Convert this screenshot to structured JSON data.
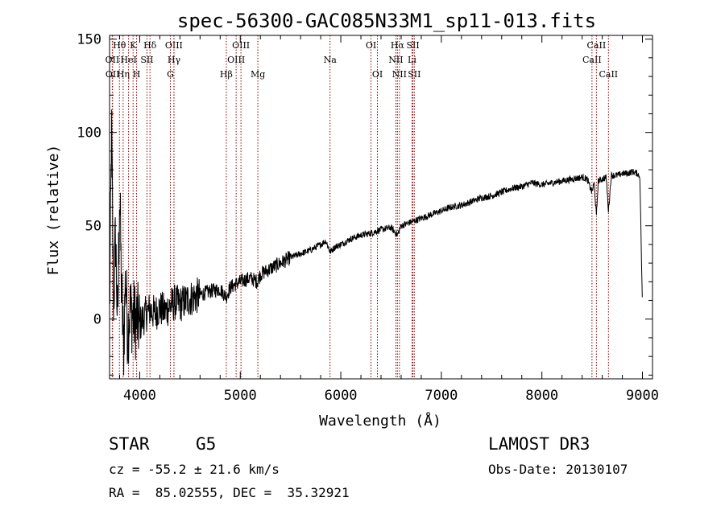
{
  "chart_data": {
    "type": "line",
    "title": "spec-56300-GAC085N33M1_sp11-013.fits",
    "xlabel": "Wavelength (Å)",
    "ylabel": "Flux (relative)",
    "xlim": [
      3700,
      9100
    ],
    "ylim": [
      -32,
      152
    ],
    "x_ticks": [
      4000,
      5000,
      6000,
      7000,
      8000,
      9000
    ],
    "x_tick_labels": [
      "4000",
      "5000",
      "6000",
      "7000",
      "8000",
      "9000"
    ],
    "y_ticks": [
      0,
      50,
      100,
      150
    ],
    "y_tick_labels": [
      "0",
      "50",
      "100",
      "150"
    ],
    "grid": false,
    "line_color": "#8b0000",
    "series": [
      {
        "name": "flux",
        "x": [
          3700,
          3720,
          3740,
          3760,
          3780,
          3800,
          3820,
          3840,
          3860,
          3880,
          3900,
          3950,
          4000,
          4050,
          4100,
          4150,
          4200,
          4250,
          4300,
          4350,
          4400,
          4500,
          4600,
          4700,
          4800,
          4860,
          4900,
          5000,
          5100,
          5170,
          5200,
          5300,
          5400,
          5500,
          5600,
          5700,
          5800,
          5850,
          5893,
          5950,
          6000,
          6100,
          6200,
          6300,
          6400,
          6500,
          6563,
          6600,
          6700,
          6800,
          6900,
          7000,
          7100,
          7200,
          7300,
          7400,
          7500,
          7600,
          7700,
          7800,
          7900,
          8000,
          8100,
          8200,
          8300,
          8400,
          8450,
          8498,
          8520,
          8542,
          8560,
          8600,
          8640,
          8662,
          8690,
          8750,
          8800,
          8850,
          8900,
          8950,
          8975,
          9000
        ],
        "y": [
          2,
          100,
          8,
          45,
          -5,
          70,
          12,
          -15,
          25,
          -8,
          5,
          0,
          -3,
          2,
          5,
          3,
          6,
          4,
          7,
          9,
          8,
          11,
          13,
          15,
          16,
          12,
          17,
          20,
          22,
          20,
          24,
          27,
          30,
          33,
          35,
          37,
          40,
          42,
          36,
          39,
          40,
          43,
          45,
          46,
          48,
          49,
          45,
          50,
          52,
          54,
          56,
          58,
          60,
          61,
          63,
          65,
          66,
          68,
          70,
          71,
          73,
          72,
          73,
          74,
          75,
          76,
          75,
          68,
          73,
          55,
          74,
          75,
          76,
          58,
          77,
          77,
          78,
          78,
          79,
          78,
          76,
          5
        ]
      }
    ],
    "lines": [
      {
        "label": "OII",
        "x": 3727,
        "row": 2
      },
      {
        "label": "OII",
        "x": 3730,
        "row": 3
      },
      {
        "label": "Hθ",
        "x": 3798,
        "row": 1
      },
      {
        "label": "Hη",
        "x": 3835,
        "row": 3
      },
      {
        "label": "HeI",
        "x": 3889,
        "row": 2
      },
      {
        "label": "K",
        "x": 3934,
        "row": 1
      },
      {
        "label": "H",
        "x": 3969,
        "row": 3
      },
      {
        "label": "SII",
        "x": 4072,
        "row": 2
      },
      {
        "label": "Hδ",
        "x": 4102,
        "row": 1
      },
      {
        "label": "G",
        "x": 4305,
        "row": 3
      },
      {
        "label": "OIII",
        "x": 4340,
        "row": 1
      },
      {
        "label": "Hγ",
        "x": 4341,
        "row": 2
      },
      {
        "label": "Hβ",
        "x": 4861,
        "row": 3
      },
      {
        "label": "OIII",
        "x": 4959,
        "row": 2
      },
      {
        "label": "OIII",
        "x": 5007,
        "row": 1
      },
      {
        "label": "Mg",
        "x": 5175,
        "row": 3
      },
      {
        "label": "Na",
        "x": 5893,
        "row": 2
      },
      {
        "label": "OI",
        "x": 6300,
        "row": 1
      },
      {
        "label": "OI",
        "x": 6364,
        "row": 3
      },
      {
        "label": "NII",
        "x": 6548,
        "row": 2
      },
      {
        "label": "Hα",
        "x": 6563,
        "row": 1
      },
      {
        "label": "NII",
        "x": 6583,
        "row": 3
      },
      {
        "label": "Li",
        "x": 6708,
        "row": 2
      },
      {
        "label": "SII",
        "x": 6717,
        "row": 1
      },
      {
        "label": "SII",
        "x": 6731,
        "row": 3
      },
      {
        "label": "CaII",
        "x": 8498,
        "row": 2
      },
      {
        "label": "CaII",
        "x": 8542,
        "row": 1
      },
      {
        "label": "CaII",
        "x": 8662,
        "row": 3
      }
    ]
  },
  "info": {
    "object_class": "STAR",
    "subclass": "G5",
    "survey": "LAMOST DR3",
    "redshift_text": "cz = -55.2 ± 21.6 km/s",
    "obs_date": "Obs-Date: 20130107",
    "coords": "RA =  85.02555, DEC =  35.32921"
  }
}
